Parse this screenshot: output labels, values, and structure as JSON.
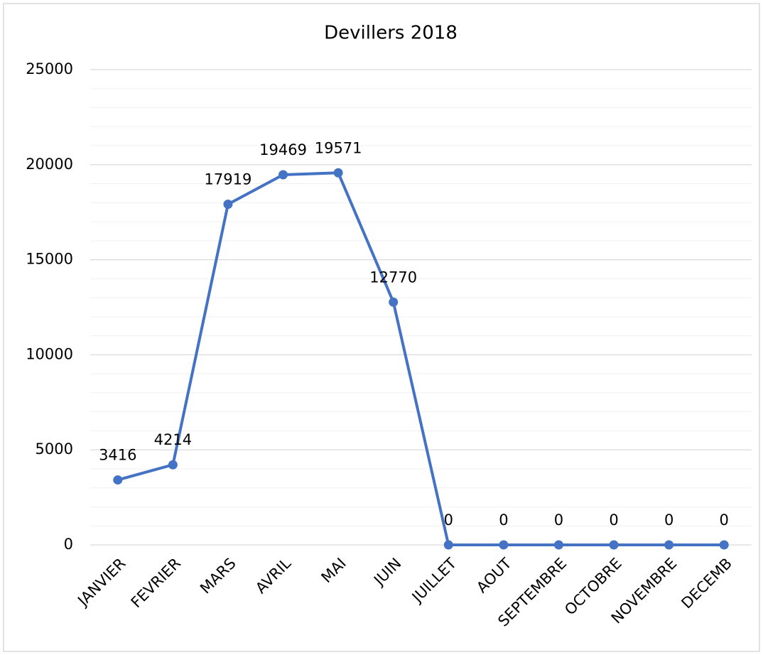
{
  "chart_data": {
    "type": "line",
    "title": "Devillers 2018",
    "categories": [
      "JANVIER",
      "FEVRIER",
      "MARS",
      "AVRIL",
      "MAI",
      "JUIN",
      "JUILLET",
      "AOUT",
      "SEPTEMBRE",
      "OCTOBRE",
      "NOVEMBRE",
      "DECEMB"
    ],
    "series": [
      {
        "name": "Devillers 2018",
        "color": "#4472c4",
        "values": [
          3416,
          4214,
          17919,
          19469,
          19571,
          12770,
          0,
          0,
          0,
          0,
          0,
          0
        ]
      }
    ],
    "ylim": [
      0,
      25000
    ],
    "yticks": [
      0,
      5000,
      10000,
      15000,
      20000,
      25000
    ],
    "minor_yticks": [
      1000,
      2000,
      3000,
      4000,
      6000,
      7000,
      8000,
      9000,
      11000,
      12000,
      13000,
      14000,
      16000,
      17000,
      18000,
      19000,
      21000,
      22000,
      23000,
      24000
    ],
    "grid": true,
    "data_labels": true
  }
}
